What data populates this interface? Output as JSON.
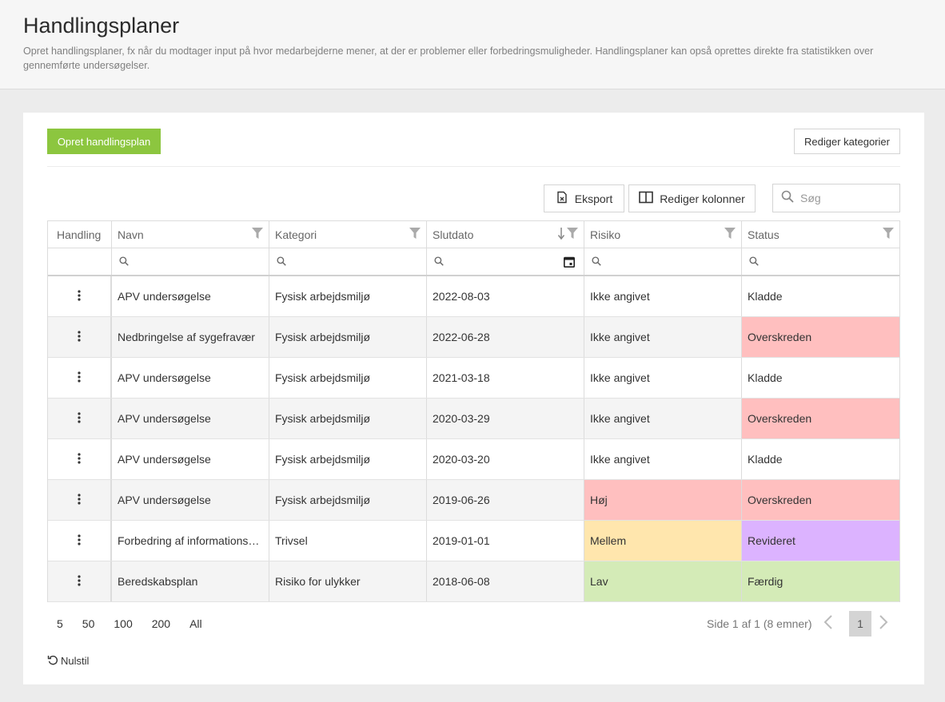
{
  "header": {
    "title": "Handlingsplaner",
    "description": "Opret handlingsplaner, fx når du modtager input på hvor medarbejderne mener, at der er problemer eller forbedringsmuligheder. Handlingsplaner kan opså oprettes direkte fra statistikken over gennemførte undersøgelser."
  },
  "toolbar": {
    "create_label": "Opret handlingsplan",
    "categories_label": "Rediger kategorier",
    "export_label": "Eksport",
    "columns_label": "Rediger kolonner",
    "search_placeholder": "Søg"
  },
  "columns": [
    "Handling",
    "Navn",
    "Kategori",
    "Slutdato",
    "Risiko",
    "Status"
  ],
  "icons": {
    "filter": "filter-icon",
    "sort": "sort-descending-icon",
    "search": "search-icon",
    "calendar": "calendar-icon",
    "export": "excel-export-icon",
    "columns": "columns-icon",
    "row_menu": "more-vertical-icon",
    "reset": "undo-icon"
  },
  "colors": {
    "primary": "#8cc63f",
    "red": "#ffbfbf",
    "yellow": "#ffe6ad",
    "purple": "#dcb3ff",
    "green": "#d4ebb7"
  },
  "rows": [
    {
      "navn": "APV undersøgelse",
      "kategori": "Fysisk arbejdsmiljø",
      "slutdato": "2022-08-03",
      "risiko": "Ikke angivet",
      "risiko_color": "",
      "status": "Kladde",
      "status_color": ""
    },
    {
      "navn": "Nedbringelse af sygefravær",
      "kategori": "Fysisk arbejdsmiljø",
      "slutdato": "2022-06-28",
      "risiko": "Ikke angivet",
      "risiko_color": "",
      "status": "Overskreden",
      "status_color": "#ffbfbf"
    },
    {
      "navn": "APV undersøgelse",
      "kategori": "Fysisk arbejdsmiljø",
      "slutdato": "2021-03-18",
      "risiko": "Ikke angivet",
      "risiko_color": "",
      "status": "Kladde",
      "status_color": ""
    },
    {
      "navn": "APV undersøgelse",
      "kategori": "Fysisk arbejdsmiljø",
      "slutdato": "2020-03-29",
      "risiko": "Ikke angivet",
      "risiko_color": "",
      "status": "Overskreden",
      "status_color": "#ffbfbf"
    },
    {
      "navn": "APV undersøgelse",
      "kategori": "Fysisk arbejdsmiljø",
      "slutdato": "2020-03-20",
      "risiko": "Ikke angivet",
      "risiko_color": "",
      "status": "Kladde",
      "status_color": ""
    },
    {
      "navn": "APV undersøgelse",
      "kategori": "Fysisk arbejdsmiljø",
      "slutdato": "2019-06-26",
      "risiko": "Høj",
      "risiko_color": "#ffbfbf",
      "status": "Overskreden",
      "status_color": "#ffbfbf"
    },
    {
      "navn": "Forbedring af informations…",
      "kategori": "Trivsel",
      "slutdato": "2019-01-01",
      "risiko": "Mellem",
      "risiko_color": "#ffe6ad",
      "status": "Revideret",
      "status_color": "#dcb3ff"
    },
    {
      "navn": "Beredskabsplan",
      "kategori": "Risiko for ulykker",
      "slutdato": "2018-06-08",
      "risiko": "Lav",
      "risiko_color": "#d4ebb7",
      "status": "Færdig",
      "status_color": "#d4ebb7"
    }
  ],
  "pagination": {
    "page_sizes": [
      "5",
      "50",
      "100",
      "200",
      "All"
    ],
    "info": "Side 1 af 1 (8 emner)",
    "current_page": "1"
  },
  "reset_label": "Nulstil"
}
